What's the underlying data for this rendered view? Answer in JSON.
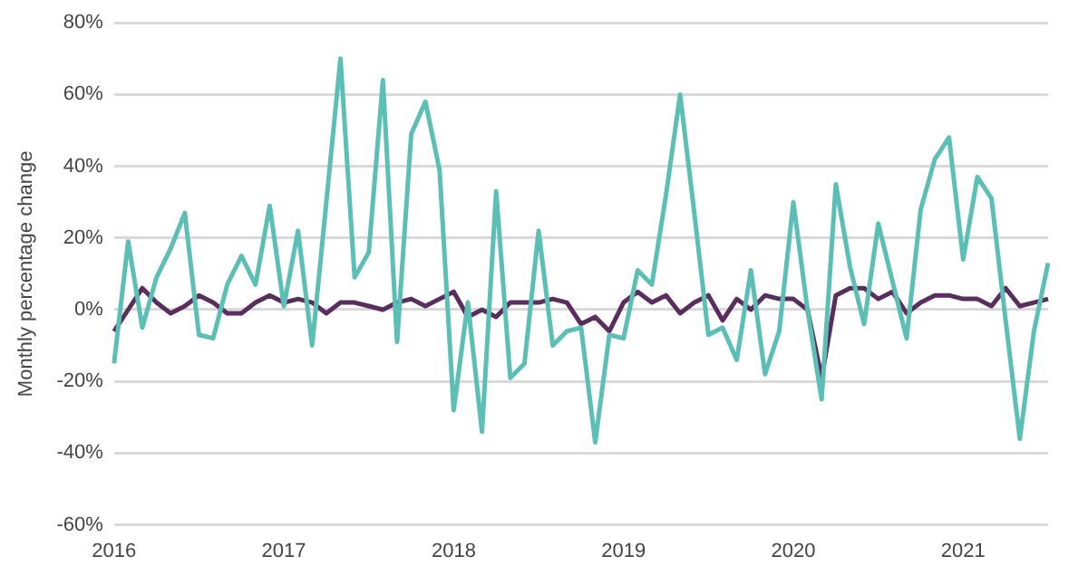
{
  "chart_data": {
    "type": "line",
    "ylabel": "Monthly percentage change",
    "categories": [
      "2016",
      null,
      null,
      null,
      null,
      null,
      null,
      null,
      null,
      null,
      null,
      null,
      "2017",
      null,
      null,
      null,
      null,
      null,
      null,
      null,
      null,
      null,
      null,
      null,
      "2018",
      null,
      null,
      null,
      null,
      null,
      null,
      null,
      null,
      null,
      null,
      null,
      "2019",
      null,
      null,
      null,
      null,
      null,
      null,
      null,
      null,
      null,
      null,
      null,
      "2020",
      null,
      null,
      null,
      null,
      null,
      null,
      null,
      null,
      null,
      null,
      null,
      "2021",
      null,
      null,
      null,
      null,
      null,
      null
    ],
    "series": [
      {
        "color": "#5bbfb5",
        "values": [
          -15,
          19,
          -5,
          9,
          17,
          27,
          -7,
          -8,
          7,
          15,
          7,
          29,
          1,
          22,
          -10,
          30,
          70,
          9,
          16,
          64,
          -9,
          49,
          58,
          39,
          -28,
          2,
          -34,
          33,
          -19,
          -15,
          22,
          -10,
          -6,
          -5,
          -37,
          -7,
          -8,
          11,
          7,
          32,
          60,
          27,
          -7,
          -5,
          -14,
          11,
          -18,
          -6,
          30,
          0,
          -25,
          35,
          12,
          -4,
          24,
          8,
          -8,
          28,
          42,
          48,
          14,
          37,
          31,
          -3,
          -36,
          -6,
          13
        ]
      },
      {
        "color": "#5a2d5f",
        "values": [
          -6,
          0,
          6,
          2,
          -1,
          1,
          4,
          2,
          -1,
          -1,
          2,
          4,
          2,
          3,
          2,
          -1,
          2,
          2,
          1,
          0,
          2,
          3,
          1,
          3,
          5,
          -2,
          0,
          -2,
          2,
          2,
          2,
          3,
          2,
          -4,
          -2,
          -6,
          2,
          5,
          2,
          4,
          -1,
          2,
          4,
          -3,
          3,
          0,
          4,
          3,
          3,
          0,
          -19,
          4,
          6,
          6,
          3,
          5,
          -1,
          2,
          4,
          4,
          3,
          3,
          1,
          6,
          1,
          2,
          3
        ]
      }
    ],
    "ylim": [
      -60,
      80
    ],
    "yticks": [
      {
        "value": -60,
        "label": "-60%"
      },
      {
        "value": -40,
        "label": "-40%"
      },
      {
        "value": -20,
        "label": "-20%"
      },
      {
        "value": 0,
        "label": "0%"
      },
      {
        "value": 20,
        "label": "20%"
      },
      {
        "value": 40,
        "label": "40%"
      },
      {
        "value": 60,
        "label": "60%"
      },
      {
        "value": 80,
        "label": "80%"
      }
    ],
    "grid": "y",
    "legend": false,
    "marker": "none",
    "line_style": "solid"
  }
}
